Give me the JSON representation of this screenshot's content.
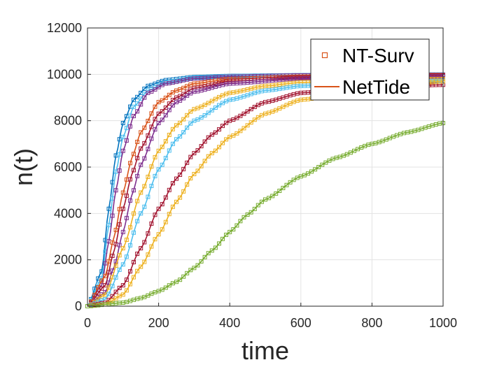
{
  "chart_data": {
    "type": "line",
    "title": "",
    "xlabel": "time",
    "ylabel": "n(t)",
    "xlim": [
      0,
      1000
    ],
    "ylim": [
      0,
      12000
    ],
    "xticks": [
      "0",
      "200",
      "400",
      "600",
      "800",
      "1000"
    ],
    "yticks": [
      "0",
      "2000",
      "4000",
      "6000",
      "8000",
      "10000",
      "12000"
    ],
    "grid": true,
    "legend": {
      "placement": "top-right",
      "entries": [
        {
          "label": "NT-Surv",
          "style": "square markers",
          "color": "#D95319"
        },
        {
          "label": "NetTide",
          "style": "line",
          "color": "#D95319"
        }
      ]
    },
    "series": [
      {
        "color": "#0072BD",
        "x": [
          0,
          40,
          60,
          80,
          100,
          130,
          170,
          220,
          300,
          400,
          600,
          800,
          1000
        ],
        "y": [
          0,
          1500,
          4200,
          6500,
          7900,
          8900,
          9500,
          9750,
          9880,
          9930,
          9960,
          9980,
          9990
        ]
      },
      {
        "color": "#4DBEEE",
        "x": [
          0,
          40,
          60,
          80,
          100,
          130,
          170,
          220,
          300,
          400,
          600,
          800,
          1000
        ],
        "y": [
          0,
          1200,
          3500,
          5800,
          7300,
          8600,
          9300,
          9650,
          9850,
          9920,
          9950,
          9970,
          9980
        ]
      },
      {
        "color": "#7E2F8E",
        "x": [
          0,
          40,
          60,
          80,
          100,
          130,
          170,
          220,
          300,
          400,
          600,
          800,
          1000
        ],
        "y": [
          0,
          900,
          2800,
          5000,
          6700,
          8200,
          9200,
          9600,
          9820,
          9900,
          9950,
          9970,
          9980
        ]
      },
      {
        "color": "#D95319",
        "x": [
          0,
          50,
          75,
          100,
          125,
          150,
          200,
          250,
          300,
          400,
          600,
          800,
          1000
        ],
        "y": [
          0,
          1300,
          3000,
          4900,
          6400,
          7500,
          8800,
          9300,
          9600,
          9800,
          9900,
          9940,
          9960
        ]
      },
      {
        "color": "#A2142F",
        "x": [
          0,
          50,
          75,
          100,
          125,
          150,
          200,
          250,
          300,
          400,
          600,
          800,
          1000
        ],
        "y": [
          0,
          900,
          2400,
          4200,
          5700,
          6800,
          8300,
          9000,
          9400,
          9700,
          9860,
          9910,
          9940
        ]
      },
      {
        "color": "#7E2F8E",
        "x": [
          0,
          50,
          75,
          100,
          125,
          150,
          200,
          250,
          300,
          400,
          600,
          800,
          1000
        ],
        "y": [
          0,
          600,
          1700,
          3200,
          4800,
          6100,
          7900,
          8800,
          9250,
          9600,
          9820,
          9880,
          9910
        ]
      },
      {
        "color": "#EDB120",
        "x": [
          0,
          50,
          100,
          150,
          200,
          250,
          300,
          400,
          500,
          600,
          800,
          1000
        ],
        "y": [
          0,
          500,
          2500,
          4900,
          6700,
          7800,
          8500,
          9200,
          9500,
          9650,
          9750,
          9800
        ]
      },
      {
        "color": "#4DBEEE",
        "x": [
          0,
          50,
          100,
          150,
          200,
          250,
          300,
          400,
          500,
          600,
          800,
          1000
        ],
        "y": [
          0,
          300,
          1800,
          4000,
          5900,
          7200,
          8000,
          8900,
          9300,
          9500,
          9650,
          9720
        ]
      },
      {
        "color": "#A2142F",
        "x": [
          0,
          50,
          100,
          150,
          200,
          250,
          300,
          350,
          400,
          500,
          600,
          800,
          1000
        ],
        "y": [
          0,
          150,
          900,
          2500,
          4200,
          5500,
          6600,
          7400,
          8000,
          8800,
          9200,
          9450,
          9550
        ]
      },
      {
        "color": "#EDB120",
        "x": [
          0,
          50,
          100,
          150,
          200,
          250,
          300,
          350,
          400,
          500,
          600,
          800,
          1000
        ],
        "y": [
          0,
          80,
          500,
          1700,
          3100,
          4500,
          5700,
          6600,
          7300,
          8300,
          8900,
          9400,
          9700
        ]
      },
      {
        "color": "#77AC30",
        "x": [
          0,
          100,
          150,
          200,
          250,
          300,
          350,
          400,
          450,
          500,
          600,
          700,
          800,
          900,
          1000
        ],
        "y": [
          0,
          150,
          350,
          650,
          1050,
          1650,
          2400,
          3200,
          3950,
          4600,
          5600,
          6400,
          7000,
          7500,
          7900
        ]
      }
    ]
  }
}
